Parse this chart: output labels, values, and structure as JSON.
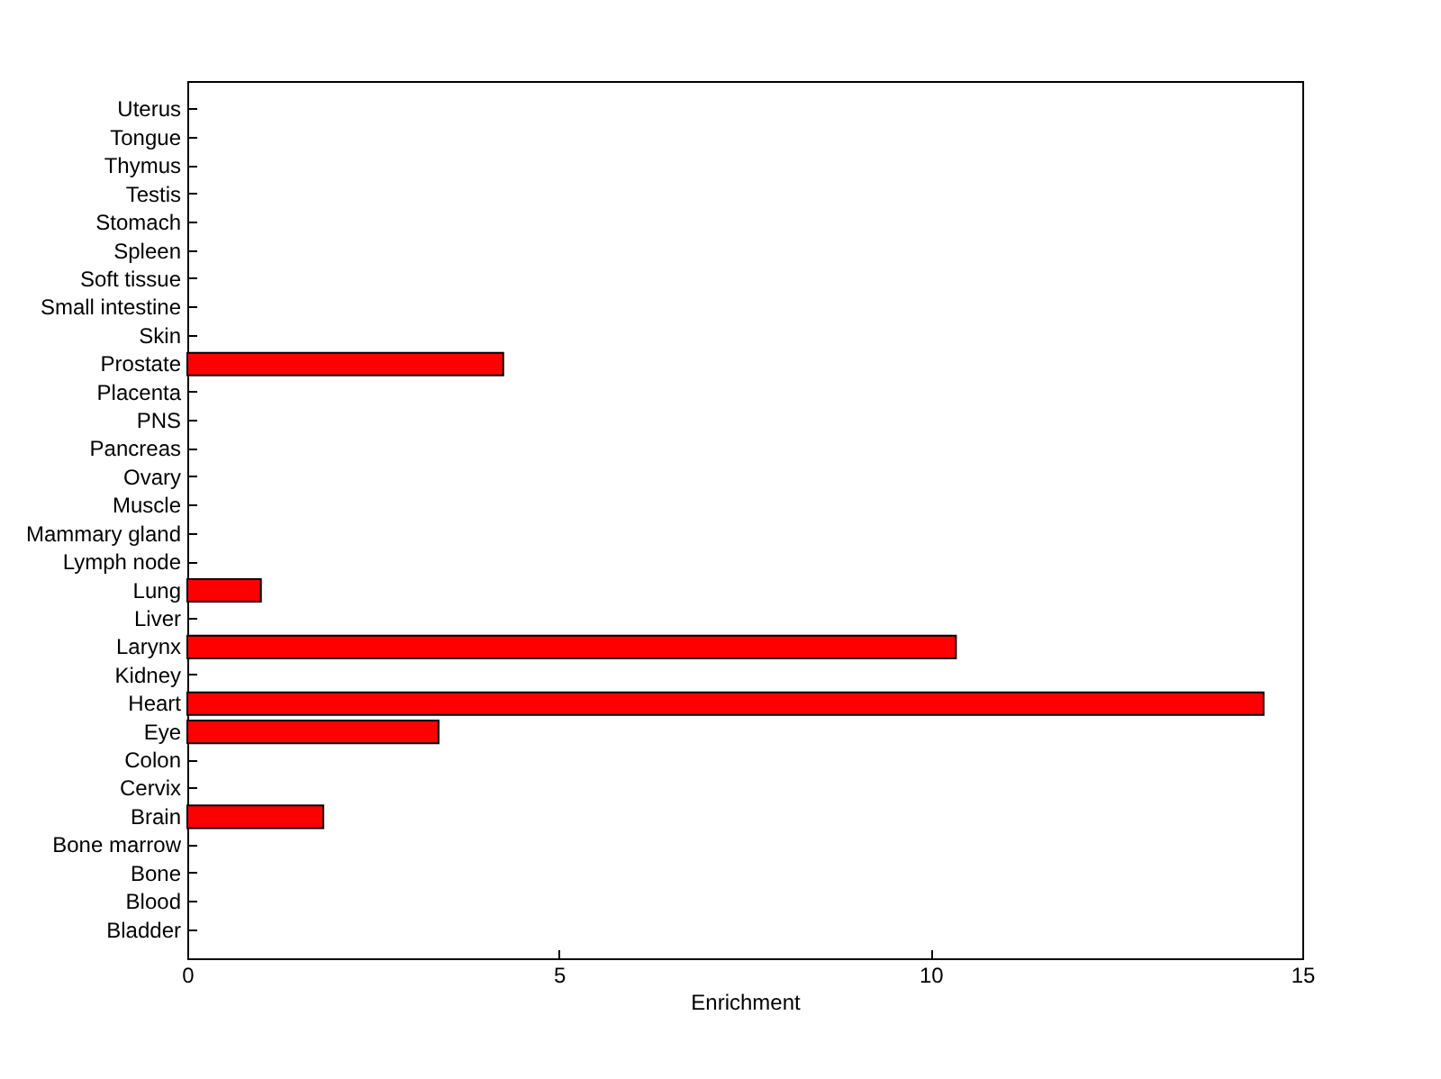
{
  "chart_data": {
    "type": "bar",
    "orientation": "horizontal",
    "xlabel": "Enrichment",
    "categories": [
      "Uterus",
      "Tongue",
      "Thymus",
      "Testis",
      "Stomach",
      "Spleen",
      "Soft tissue",
      "Small intestine",
      "Skin",
      "Prostate",
      "Placenta",
      "PNS",
      "Pancreas",
      "Ovary",
      "Muscle",
      "Mammary gland",
      "Lymph node",
      "Lung",
      "Liver",
      "Larynx",
      "Kidney",
      "Heart",
      "Eye",
      "Colon",
      "Cervix",
      "Brain",
      "Bone marrow",
      "Bone",
      "Blood",
      "Bladder"
    ],
    "values": [
      0,
      0,
      0,
      0,
      0,
      0,
      0,
      0,
      0,
      4.25,
      0,
      0,
      0,
      0,
      0,
      0,
      0,
      0.99,
      0,
      10.34,
      0,
      14.48,
      3.38,
      0,
      0,
      1.83,
      0,
      0,
      0,
      0
    ],
    "color": "#ff0000",
    "xlim": [
      0,
      15
    ],
    "xticks": [
      0,
      5,
      10,
      15
    ],
    "grid": false
  }
}
